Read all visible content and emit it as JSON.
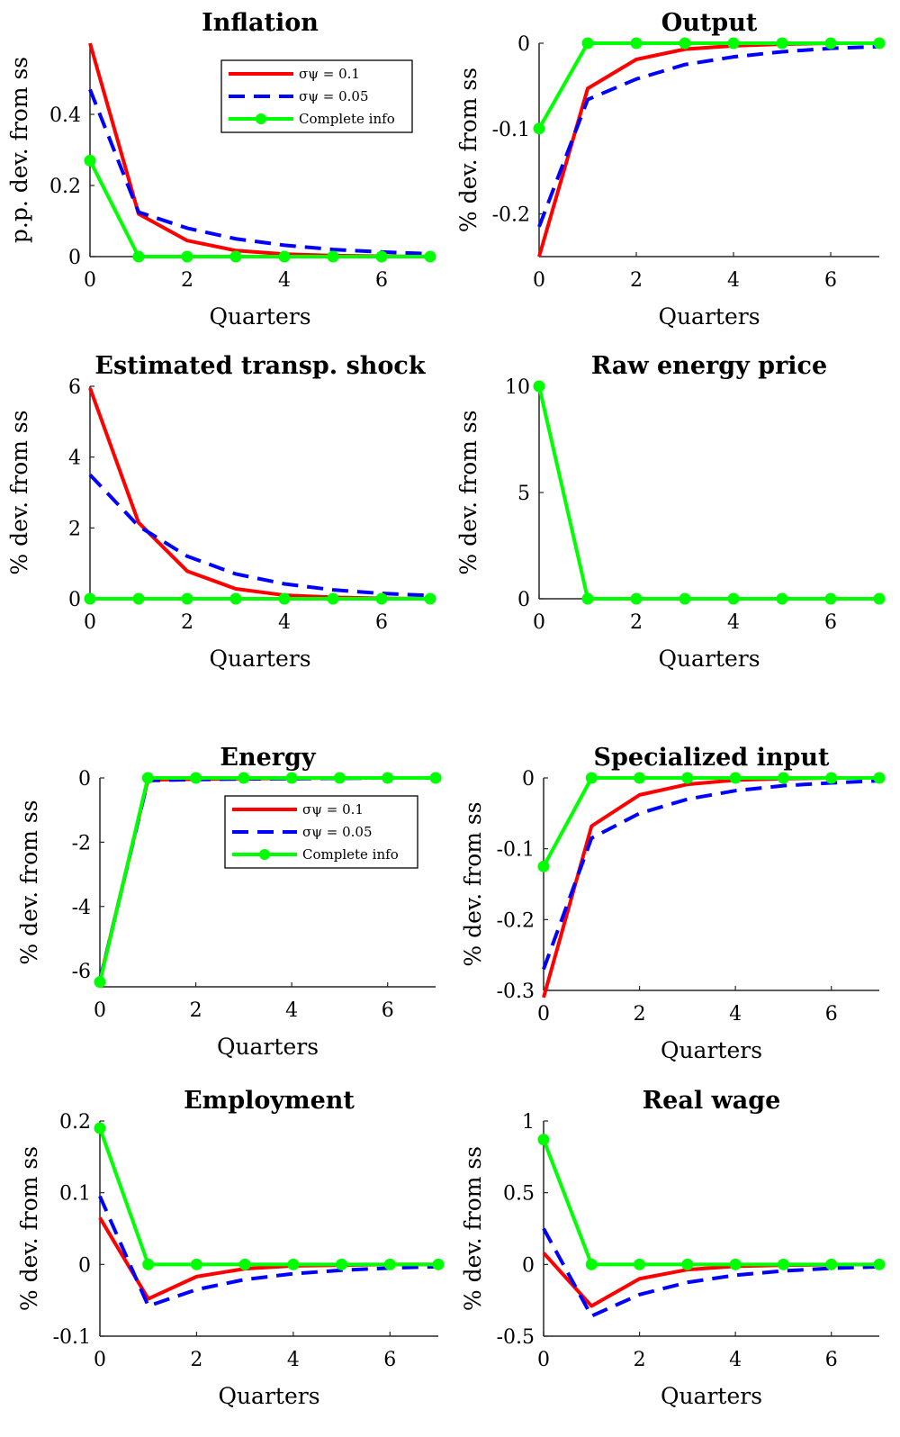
{
  "colors": {
    "red": "#ff0000",
    "blue": "#0000ff",
    "green": "#00ff00"
  },
  "chart_data": [
    {
      "type": "line",
      "title": "Inflation",
      "xlabel": "Quarters",
      "ylabel": "p.p. dev. from ss",
      "xlim": [
        0,
        7
      ],
      "ylim": [
        0,
        0.6
      ],
      "xticks": [
        "0",
        "2",
        "4",
        "6"
      ],
      "yticks": [
        "0",
        "0.2",
        "0.4"
      ],
      "legend": {
        "placement": "top-right",
        "entries": [
          "σψ = 0.1",
          "σψ = 0.05",
          "Complete info"
        ]
      },
      "x": [
        0,
        1,
        2,
        3,
        4,
        5,
        6,
        7
      ],
      "series": [
        {
          "name": "σψ = 0.1",
          "style": "solid",
          "color": "#ff0000",
          "values": [
            0.6,
            0.12,
            0.045,
            0.017,
            0.007,
            0.003,
            0.001,
            0.0
          ]
        },
        {
          "name": "σψ = 0.05",
          "style": "dashed",
          "color": "#0000ff",
          "values": [
            0.47,
            0.125,
            0.08,
            0.05,
            0.032,
            0.02,
            0.013,
            0.008
          ]
        },
        {
          "name": "Complete info",
          "style": "marker",
          "color": "#00ff00",
          "values": [
            0.27,
            0,
            0,
            0,
            0,
            0,
            0,
            0
          ]
        }
      ]
    },
    {
      "type": "line",
      "title": "Output",
      "xlabel": "Quarters",
      "ylabel": "% dev. from ss",
      "xlim": [
        0,
        7
      ],
      "ylim": [
        -0.25,
        0
      ],
      "xticks": [
        "0",
        "2",
        "4",
        "6"
      ],
      "yticks": [
        "0",
        "-0.1",
        "-0.2"
      ],
      "x": [
        0,
        1,
        2,
        3,
        4,
        5,
        6,
        7
      ],
      "series": [
        {
          "name": "σψ = 0.1",
          "style": "solid",
          "color": "#ff0000",
          "values": [
            -0.25,
            -0.053,
            -0.019,
            -0.007,
            -0.003,
            -0.001,
            0,
            0
          ]
        },
        {
          "name": "σψ = 0.05",
          "style": "dashed",
          "color": "#0000ff",
          "values": [
            -0.215,
            -0.066,
            -0.042,
            -0.025,
            -0.016,
            -0.01,
            -0.006,
            -0.004
          ]
        },
        {
          "name": "Complete info",
          "style": "marker",
          "color": "#00ff00",
          "values": [
            -0.1,
            0,
            0,
            0,
            0,
            0,
            0,
            0
          ]
        }
      ]
    },
    {
      "type": "line",
      "title": "Estimated transp. shock",
      "xlabel": "Quarters",
      "ylabel": "% dev. from ss",
      "xlim": [
        0,
        7
      ],
      "ylim": [
        0,
        6
      ],
      "xticks": [
        "0",
        "2",
        "4",
        "6"
      ],
      "yticks": [
        "0",
        "2",
        "4",
        "6"
      ],
      "x": [
        0,
        1,
        2,
        3,
        4,
        5,
        6,
        7
      ],
      "series": [
        {
          "name": "σψ = 0.1",
          "style": "solid",
          "color": "#ff0000",
          "values": [
            5.95,
            2.15,
            0.78,
            0.28,
            0.1,
            0.04,
            0.01,
            0.0
          ]
        },
        {
          "name": "σψ = 0.05",
          "style": "dashed",
          "color": "#0000ff",
          "values": [
            3.5,
            2.05,
            1.2,
            0.7,
            0.42,
            0.25,
            0.15,
            0.09
          ]
        },
        {
          "name": "Complete info",
          "style": "marker",
          "color": "#00ff00",
          "values": [
            0,
            0,
            0,
            0,
            0,
            0,
            0,
            0
          ]
        }
      ]
    },
    {
      "type": "line",
      "title": "Raw energy price",
      "xlabel": "Quarters",
      "ylabel": "% dev. from ss",
      "xlim": [
        0,
        7
      ],
      "ylim": [
        0,
        10
      ],
      "xticks": [
        "0",
        "2",
        "4",
        "6"
      ],
      "yticks": [
        "0",
        "5",
        "10"
      ],
      "x": [
        0,
        1,
        2,
        3,
        4,
        5,
        6,
        7
      ],
      "series": [
        {
          "name": "Complete info",
          "style": "marker",
          "color": "#00ff00",
          "values": [
            10,
            0,
            0,
            0,
            0,
            0,
            0,
            0
          ]
        }
      ]
    },
    {
      "type": "line",
      "title": "Energy",
      "xlabel": "Quarters",
      "ylabel": "% dev. from ss",
      "xlim": [
        0,
        7
      ],
      "ylim": [
        -6.5,
        0
      ],
      "xticks": [
        "0",
        "2",
        "4",
        "6"
      ],
      "yticks": [
        "0",
        "-2",
        "-4",
        "-6"
      ],
      "legend": {
        "placement": "top-right",
        "entries": [
          "σψ = 0.1",
          "σψ = 0.05",
          "Complete info"
        ]
      },
      "x": [
        0,
        1,
        2,
        3,
        4,
        5,
        6,
        7
      ],
      "series": [
        {
          "name": "σψ = 0.1",
          "style": "solid",
          "color": "#ff0000",
          "values": [
            -6.3,
            -0.06,
            -0.04,
            -0.02,
            -0.01,
            0,
            0,
            0
          ]
        },
        {
          "name": "σψ = 0.05",
          "style": "dashed",
          "color": "#0000ff",
          "values": [
            -6.3,
            -0.08,
            -0.05,
            -0.03,
            -0.02,
            -0.01,
            0,
            0
          ]
        },
        {
          "name": "Complete info",
          "style": "marker",
          "color": "#00ff00",
          "values": [
            -6.35,
            0,
            0,
            0,
            0,
            0,
            0,
            0
          ]
        }
      ]
    },
    {
      "type": "line",
      "title": "Specialized input",
      "xlabel": "Quarters",
      "ylabel": "% dev. from ss",
      "xlim": [
        0,
        7
      ],
      "ylim": [
        -0.3,
        0
      ],
      "xticks": [
        "0",
        "2",
        "4",
        "6"
      ],
      "yticks": [
        "0",
        "-0.1",
        "-0.2",
        "-0.3"
      ],
      "x": [
        0,
        1,
        2,
        3,
        4,
        5,
        6,
        7
      ],
      "series": [
        {
          "name": "σψ = 0.1",
          "style": "solid",
          "color": "#ff0000",
          "values": [
            -0.31,
            -0.068,
            -0.024,
            -0.009,
            -0.003,
            -0.001,
            0,
            0
          ]
        },
        {
          "name": "σψ = 0.05",
          "style": "dashed",
          "color": "#0000ff",
          "values": [
            -0.27,
            -0.085,
            -0.05,
            -0.03,
            -0.018,
            -0.011,
            -0.007,
            -0.004
          ]
        },
        {
          "name": "Complete info",
          "style": "marker",
          "color": "#00ff00",
          "values": [
            -0.125,
            0,
            0,
            0,
            0,
            0,
            0,
            0
          ]
        }
      ]
    },
    {
      "type": "line",
      "title": "Employment",
      "xlabel": "Quarters",
      "ylabel": "% dev. from ss",
      "xlim": [
        0,
        7
      ],
      "ylim": [
        -0.1,
        0.2
      ],
      "xticks": [
        "0",
        "2",
        "4",
        "6"
      ],
      "yticks": [
        "0.2",
        "0.1",
        "0",
        "-0.1"
      ],
      "x": [
        0,
        1,
        2,
        3,
        4,
        5,
        6,
        7
      ],
      "series": [
        {
          "name": "σψ = 0.1",
          "style": "solid",
          "color": "#ff0000",
          "values": [
            0.065,
            -0.048,
            -0.017,
            -0.006,
            -0.002,
            -0.001,
            0,
            0
          ]
        },
        {
          "name": "σψ = 0.05",
          "style": "dashed",
          "color": "#0000ff",
          "values": [
            0.095,
            -0.058,
            -0.035,
            -0.021,
            -0.013,
            -0.008,
            -0.005,
            -0.003
          ]
        },
        {
          "name": "Complete info",
          "style": "marker",
          "color": "#00ff00",
          "values": [
            0.19,
            0,
            0,
            0,
            0,
            0,
            0,
            0
          ]
        }
      ]
    },
    {
      "type": "line",
      "title": "Real wage",
      "xlabel": "Quarters",
      "ylabel": "% dev. from ss",
      "xlim": [
        0,
        7
      ],
      "ylim": [
        -0.5,
        1
      ],
      "xticks": [
        "0",
        "2",
        "4",
        "6"
      ],
      "yticks": [
        "1",
        "0.5",
        "0",
        "-0.5"
      ],
      "x": [
        0,
        1,
        2,
        3,
        4,
        5,
        6,
        7
      ],
      "series": [
        {
          "name": "σψ = 0.1",
          "style": "solid",
          "color": "#ff0000",
          "values": [
            0.08,
            -0.29,
            -0.1,
            -0.036,
            -0.013,
            -0.005,
            -0.002,
            0
          ]
        },
        {
          "name": "σψ = 0.05",
          "style": "dashed",
          "color": "#0000ff",
          "values": [
            0.25,
            -0.36,
            -0.21,
            -0.125,
            -0.075,
            -0.045,
            -0.027,
            -0.016
          ]
        },
        {
          "name": "Complete info",
          "style": "marker",
          "color": "#00ff00",
          "values": [
            0.87,
            0,
            0,
            0,
            0,
            0,
            0,
            0
          ]
        }
      ]
    }
  ]
}
